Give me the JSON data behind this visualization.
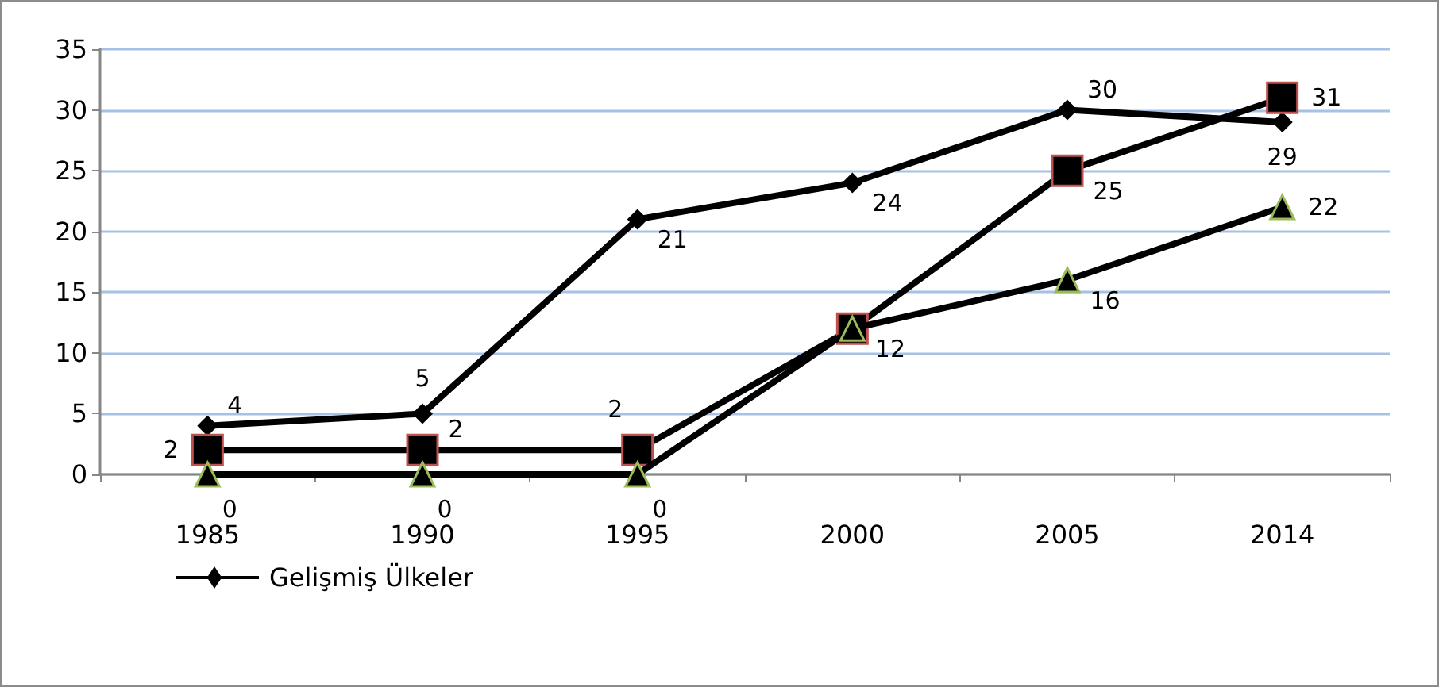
{
  "chart_data": {
    "type": "line",
    "categories": [
      "1985",
      "1990",
      "1995",
      "2000",
      "2005",
      "2014"
    ],
    "series": [
      {
        "name": "Gelişmiş Ülkeler",
        "color": "#000000",
        "marker": "diamond",
        "values": [
          4,
          5,
          21,
          24,
          30,
          29
        ],
        "value_labels": [
          "4",
          "5",
          "21",
          "24",
          "30",
          "29"
        ]
      },
      {
        "color": "#000000",
        "marker": "square",
        "values": [
          2,
          2,
          2,
          12,
          25,
          31
        ],
        "value_labels": [
          "2",
          "2",
          "2",
          null,
          "25",
          "31"
        ]
      },
      {
        "color": "#000000",
        "marker": "triangle",
        "values": [
          0,
          0,
          0,
          12,
          16,
          22
        ],
        "value_labels": [
          "0",
          "0",
          "0",
          "12",
          "16",
          "22"
        ]
      }
    ],
    "ylim": [
      0,
      35
    ],
    "yticks": [
      0,
      5,
      10,
      15,
      20,
      25,
      30,
      35
    ],
    "grid": "y",
    "legend": "bottom left",
    "line_style": "solid"
  }
}
